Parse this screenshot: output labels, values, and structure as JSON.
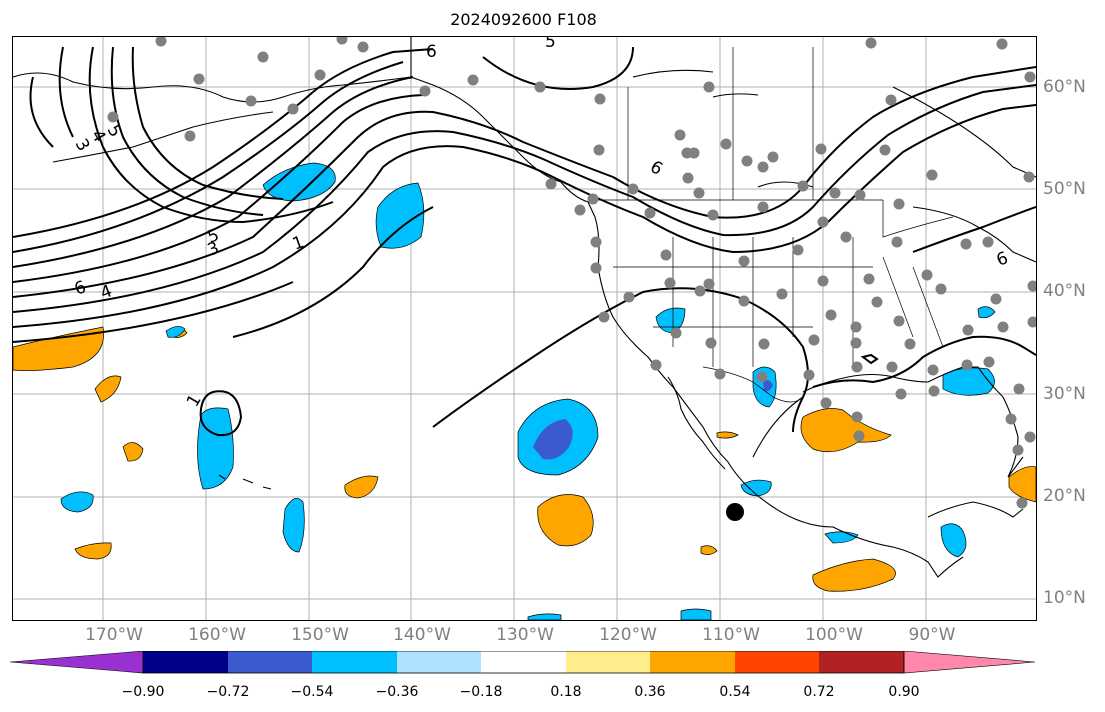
{
  "title": "2024092600 F108",
  "longitude_labels": [
    "170°W",
    "160°W",
    "150°W",
    "140°W",
    "130°W",
    "120°W",
    "110°W",
    "100°W",
    "90°W"
  ],
  "latitude_labels": [
    "60°N",
    "50°N",
    "40°N",
    "30°N",
    "20°N",
    "10°N"
  ],
  "contour_labels": [
    "3",
    "4",
    "5",
    "6",
    "5",
    "3",
    "1",
    "6",
    "4",
    "6",
    "5",
    "6",
    "1"
  ],
  "colorbar": {
    "tick_labels": [
      "−0.90",
      "−0.72",
      "−0.54",
      "−0.36",
      "−0.18",
      "0.18",
      "0.36",
      "0.54",
      "0.72",
      "0.90"
    ],
    "colors": [
      "#9b30d0",
      "#00008b",
      "#3a5bcd",
      "#00bfff",
      "#b0e2ff",
      "#ffffff",
      "#ffec8b",
      "#ffa500",
      "#ff4500",
      "#b22222",
      "#ff88aa"
    ]
  },
  "colors": {
    "land_outline": "#000000",
    "grid": "#b0b0b0",
    "station_dots": "#808080",
    "marker": "#000000"
  }
}
